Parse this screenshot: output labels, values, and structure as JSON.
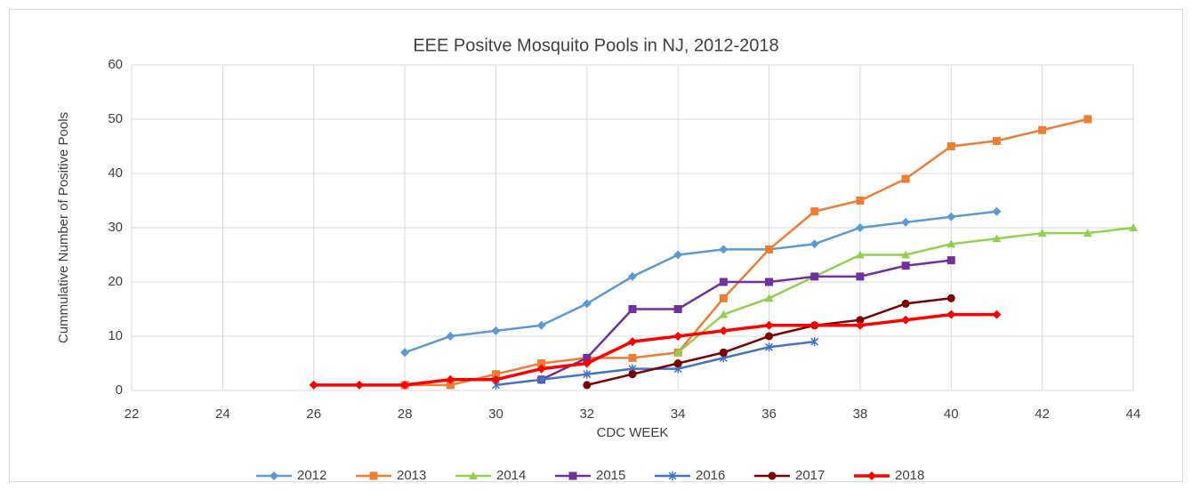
{
  "chart_data": {
    "type": "line",
    "title": "EEE Positve Mosquito Pools in NJ, 2012-2018",
    "x_label": "CDC WEEK",
    "y_label": "Cummulative Number of Positive Pools",
    "xlim": [
      22,
      44
    ],
    "xticks": [
      22,
      24,
      26,
      28,
      30,
      32,
      34,
      36,
      38,
      40,
      42,
      44
    ],
    "ylim": [
      0,
      60
    ],
    "yticks": [
      0,
      10,
      20,
      30,
      40,
      50,
      60
    ],
    "grid": true,
    "legend": "bottom",
    "series": [
      {
        "name": "2012",
        "color": "#5b9bd5",
        "marker": "diamond",
        "x": [
          28,
          29,
          30,
          31,
          32,
          33,
          34,
          35,
          36,
          37,
          38,
          39,
          40,
          41
        ],
        "values": [
          7,
          10,
          11,
          12,
          16,
          21,
          25,
          26,
          26,
          27,
          30,
          31,
          32,
          33
        ]
      },
      {
        "name": "2013",
        "color": "#ed7d31",
        "marker": "square",
        "x": [
          28,
          29,
          30,
          31,
          32,
          33,
          34,
          35,
          36,
          37,
          38,
          39,
          40,
          41,
          42,
          43
        ],
        "values": [
          1,
          1,
          3,
          5,
          6,
          6,
          7,
          17,
          26,
          33,
          35,
          39,
          45,
          46,
          48,
          50
        ]
      },
      {
        "name": "2014",
        "color": "#92d050",
        "marker": "triangle",
        "x": [
          34,
          35,
          36,
          37,
          38,
          39,
          40,
          41,
          42,
          43,
          44
        ],
        "values": [
          7,
          14,
          17,
          21,
          25,
          25,
          27,
          28,
          29,
          29,
          30
        ]
      },
      {
        "name": "2015",
        "color": "#7030a0",
        "marker": "square",
        "x": [
          31,
          32,
          33,
          34,
          35,
          36,
          37,
          38,
          39,
          40
        ],
        "values": [
          2,
          6,
          15,
          15,
          20,
          20,
          21,
          21,
          23,
          24
        ]
      },
      {
        "name": "2016",
        "color": "#4472c4",
        "marker": "asterisk",
        "x": [
          30,
          31,
          32,
          33,
          34,
          35,
          36,
          37
        ],
        "values": [
          1,
          2,
          3,
          4,
          4,
          6,
          8,
          9
        ]
      },
      {
        "name": "2017",
        "color": "#7b0000",
        "marker": "circle",
        "x": [
          32,
          33,
          34,
          35,
          36,
          37,
          38,
          39,
          40
        ],
        "values": [
          1,
          3,
          5,
          7,
          10,
          12,
          13,
          16,
          17
        ]
      },
      {
        "name": "2018",
        "color": "#ff0000",
        "marker": "diamond",
        "x": [
          26,
          27,
          28,
          29,
          30,
          31,
          32,
          33,
          34,
          35,
          36,
          37,
          38,
          39,
          40,
          41
        ],
        "values": [
          1,
          1,
          1,
          2,
          2,
          4,
          5,
          9,
          10,
          11,
          12,
          12,
          12,
          13,
          14,
          14
        ]
      }
    ]
  }
}
